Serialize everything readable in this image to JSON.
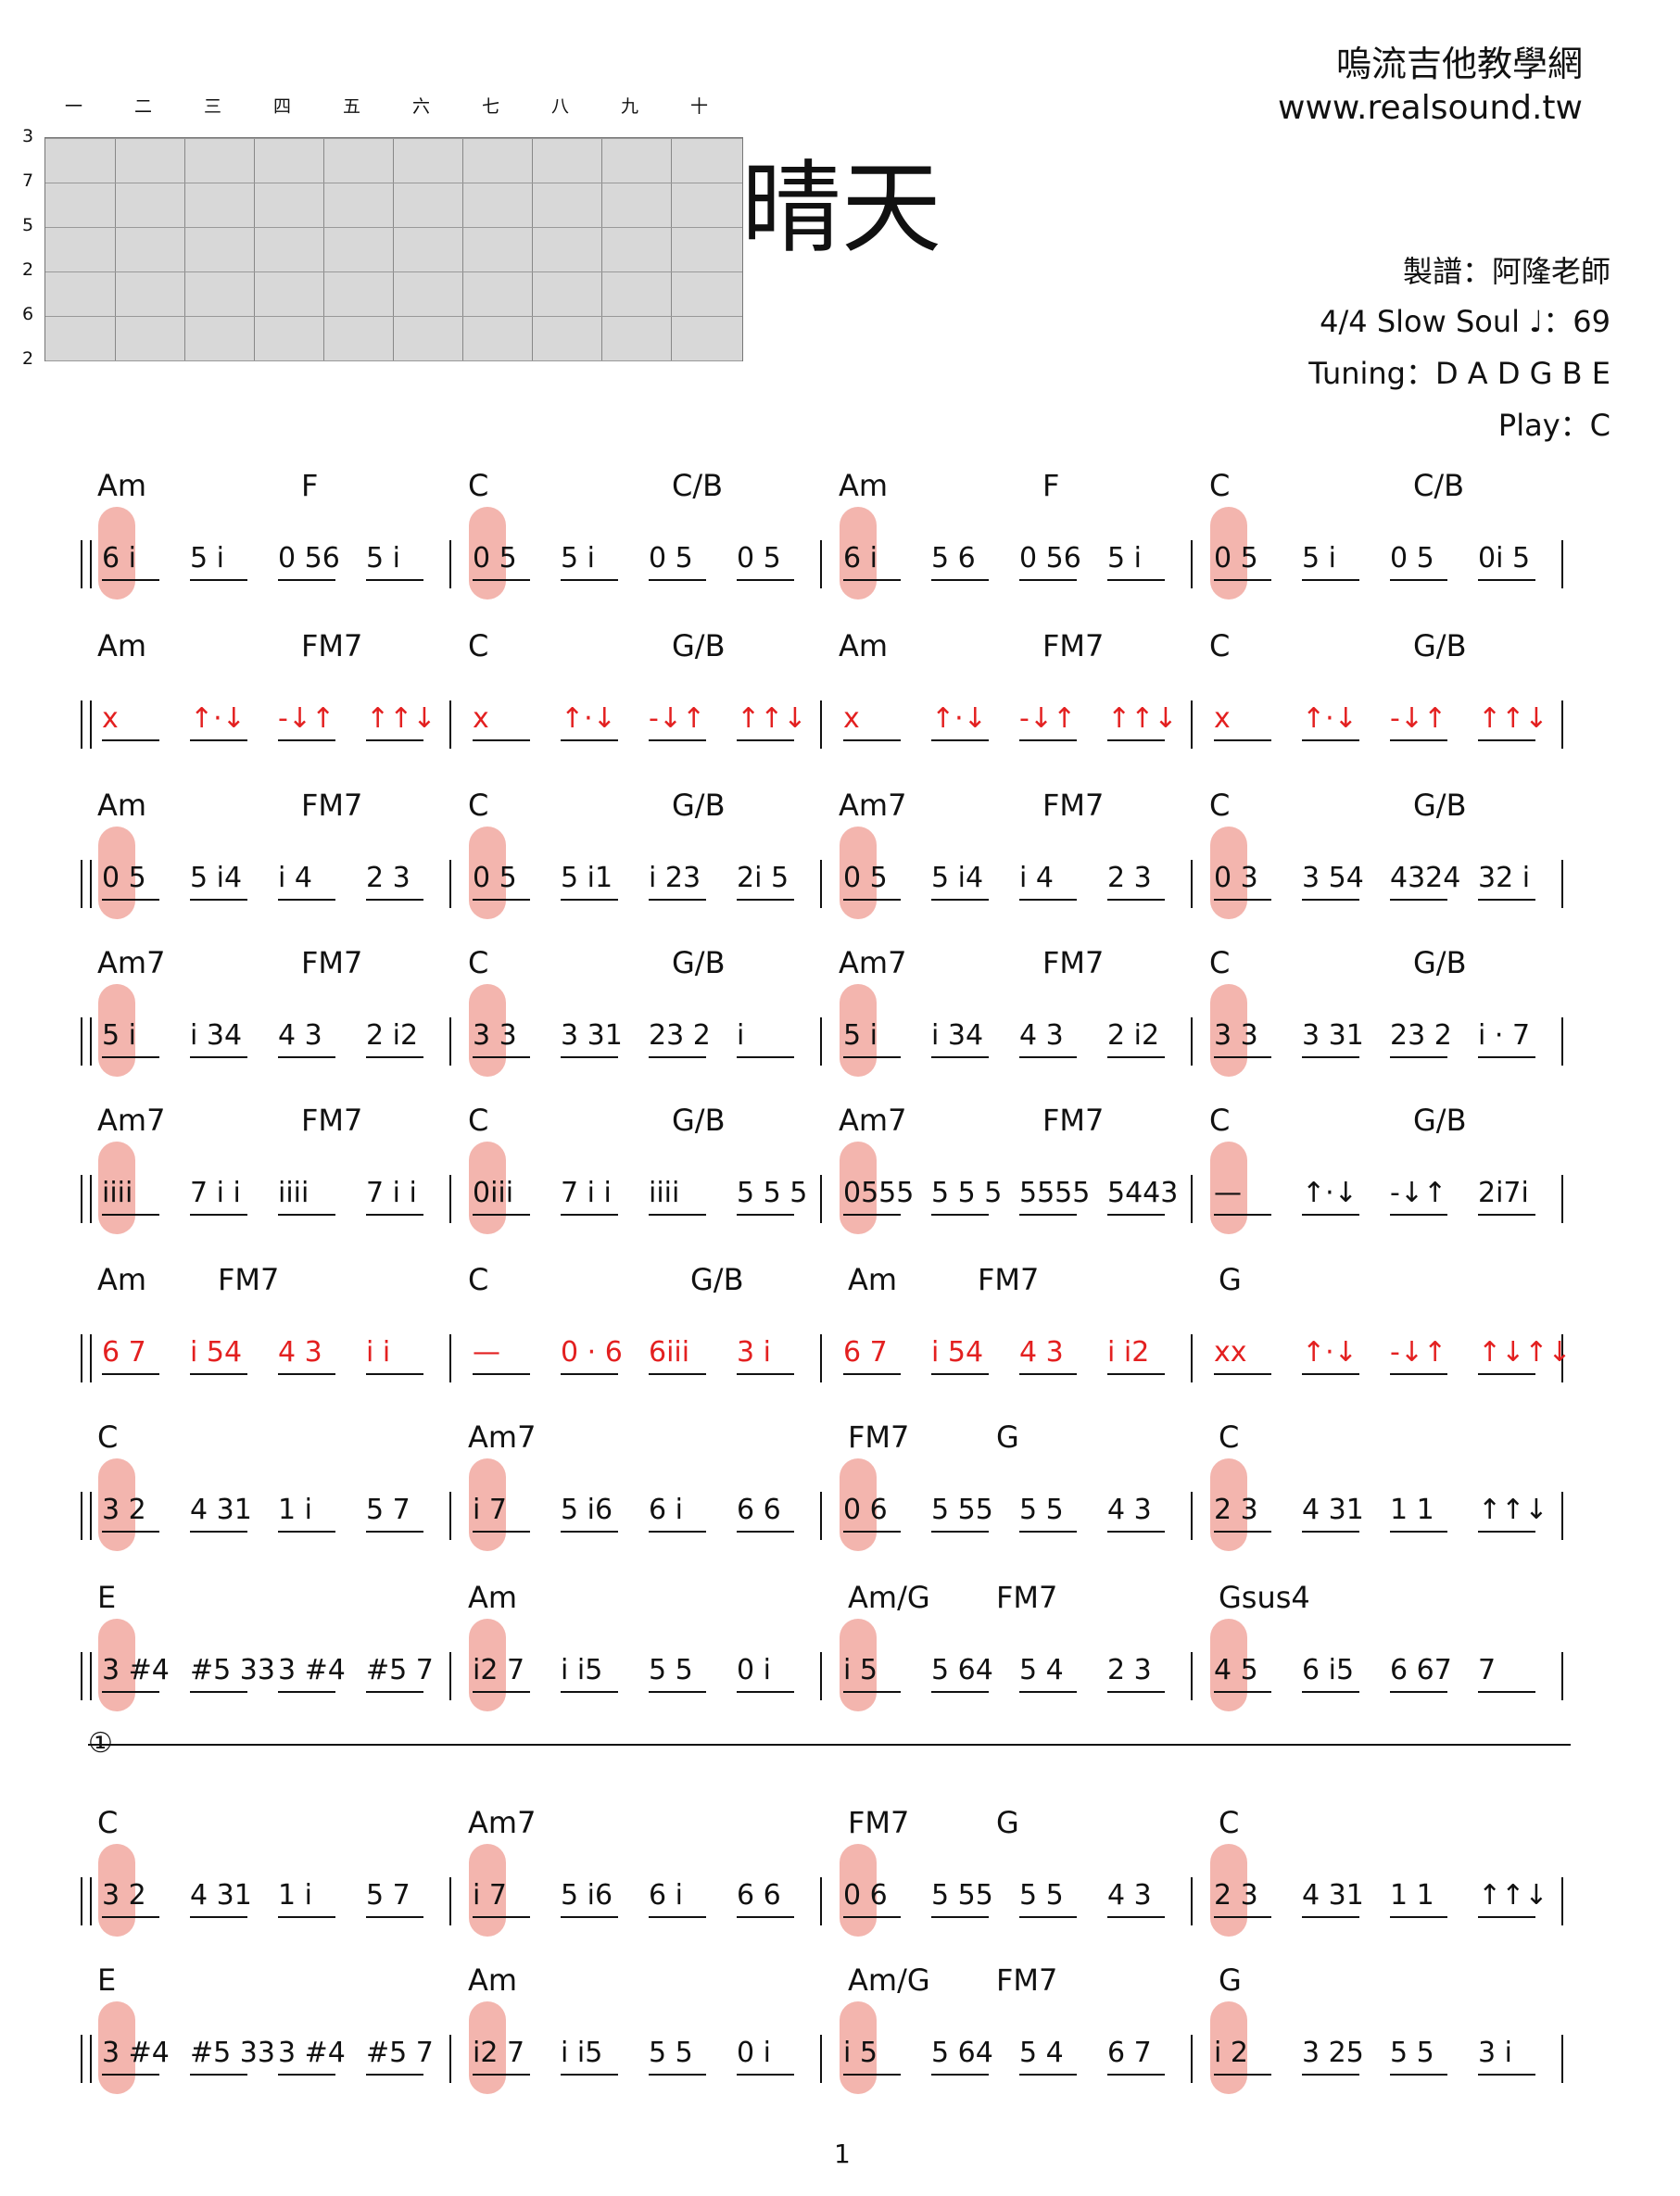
{
  "header": {
    "site_name": "嗚流吉他教學網",
    "site_url": "www.realsound.tw",
    "title": "晴天",
    "arranger": "製譜：阿隆老師",
    "time_style": "4/4   Slow Soul   ♩：69",
    "tuning": "Tuning：D A D G B E",
    "play": "Play：C"
  },
  "fretboard": {
    "headers": [
      "一",
      "二",
      "三",
      "四",
      "五",
      "六",
      "七",
      "八",
      "九",
      "十"
    ],
    "strings": [
      "3",
      "7",
      "5",
      "2",
      "6",
      "2"
    ]
  },
  "systems": [
    {
      "chords": [
        "Am",
        "F",
        "C",
        "C/B",
        "Am",
        "F",
        "C",
        "C/B"
      ],
      "notes": [
        "6 i",
        "5 i",
        "0 56",
        "5 i",
        "0 5",
        "5 i",
        "0 5",
        "0 5",
        "6 i",
        "5 6",
        "0 56",
        "5 i",
        "0 5",
        "5 i",
        "0 5",
        "0i 5"
      ]
    },
    {
      "chords": [
        "Am",
        "FM7",
        "C",
        "G/B",
        "Am",
        "FM7",
        "C",
        "G/B"
      ],
      "notes": [
        "x",
        "↑·↓",
        "-↓↑",
        "↑↑↓",
        "x",
        "↑·↓",
        "-↓↑",
        "↑↑↓",
        "x",
        "↑·↓",
        "-↓↑",
        "↑↑↓",
        "x",
        "↑·↓",
        "-↓↑",
        "↑↑↓"
      ]
    },
    {
      "chords": [
        "Am",
        "FM7",
        "C",
        "G/B",
        "Am7",
        "FM7",
        "C",
        "G/B"
      ],
      "notes": [
        "0 5",
        "5 i4",
        "i 4",
        "2 3",
        "0 5",
        "5 i1",
        "i 23",
        "2i 5",
        "0 5",
        "5 i4",
        "i 4",
        "2 3",
        "0 3",
        "3 54",
        "4324",
        "32 i"
      ]
    },
    {
      "chords": [
        "Am7",
        "FM7",
        "C",
        "G/B",
        "Am7",
        "FM7",
        "C",
        "G/B"
      ],
      "notes": [
        "5 i",
        "i 34",
        "4 3",
        "2 i2",
        "3 3",
        "3 31",
        "23 2",
        "i",
        "5 i",
        "i 34",
        "4 3",
        "2 i2",
        "3 3",
        "3 31",
        "23 2",
        "i · 7"
      ]
    },
    {
      "chords": [
        "Am7",
        "FM7",
        "C",
        "G/B",
        "Am7",
        "FM7",
        "C",
        "G/B"
      ],
      "notes": [
        "iiii",
        "7 i i",
        "iiii",
        "7 i i",
        "0iii",
        "7 i i",
        "iiii",
        "5 5 5",
        "0555",
        "5 5 5",
        "5555",
        "5443",
        "—",
        "↑·↓",
        "-↓↑",
        "2i7i"
      ]
    },
    {
      "chords": [
        "Am",
        "FM7",
        "C",
        "G/B",
        "Am",
        "FM7",
        "G"
      ],
      "notes": [
        "6 7",
        "i 54",
        "4 3",
        "i i",
        "—",
        "0 · 6",
        "6iii",
        "3 i",
        "6 7",
        "i 54",
        "4 3",
        "i i2",
        "xx",
        "↑·↓",
        "-↓↑",
        "↑↓↑↓"
      ]
    },
    {
      "chords": [
        "C",
        "Am7",
        "FM7",
        "G",
        "C"
      ],
      "notes": [
        "3 2",
        "4 31",
        "1 i",
        "5 7",
        "i 7",
        "5 i6",
        "6 i",
        "6 6",
        "0 6",
        "5 55",
        "5 5",
        "4 3",
        "2 3",
        "4 31",
        "1 1",
        "↑↑↓"
      ]
    },
    {
      "chords": [
        "E",
        "Am",
        "Am/G",
        "FM7",
        "Gsus4"
      ],
      "notes": [
        "3 #4",
        "#5 33",
        "3 #4",
        "#5 7",
        "i2 7",
        "i i5",
        "5 5",
        "0 i",
        "i 5",
        "5 64",
        "5 4",
        "2 3",
        "4 5",
        "6 i5",
        "6 67",
        "7"
      ]
    },
    {
      "chords": [
        "C",
        "Am7",
        "FM7",
        "G",
        "C"
      ],
      "notes": [
        "3 2",
        "4 31",
        "1 i",
        "5 7",
        "i 7",
        "5 i6",
        "6 i",
        "6 6",
        "0 6",
        "5 55",
        "5 5",
        "4 3",
        "2 3",
        "4 31",
        "1 1",
        "↑↑↓"
      ]
    },
    {
      "chords": [
        "E",
        "Am",
        "Am/G",
        "FM7",
        "G"
      ],
      "notes": [
        "3 #4",
        "#5 33",
        "3 #4",
        "#5 7",
        "i2 7",
        "i i5",
        "5 5",
        "0 i",
        "i 5",
        "5 64",
        "5 4",
        "6 7",
        "i 2",
        "3 25",
        "5 5",
        "3 i"
      ]
    }
  ],
  "volta_label": "①",
  "page_number": "1"
}
